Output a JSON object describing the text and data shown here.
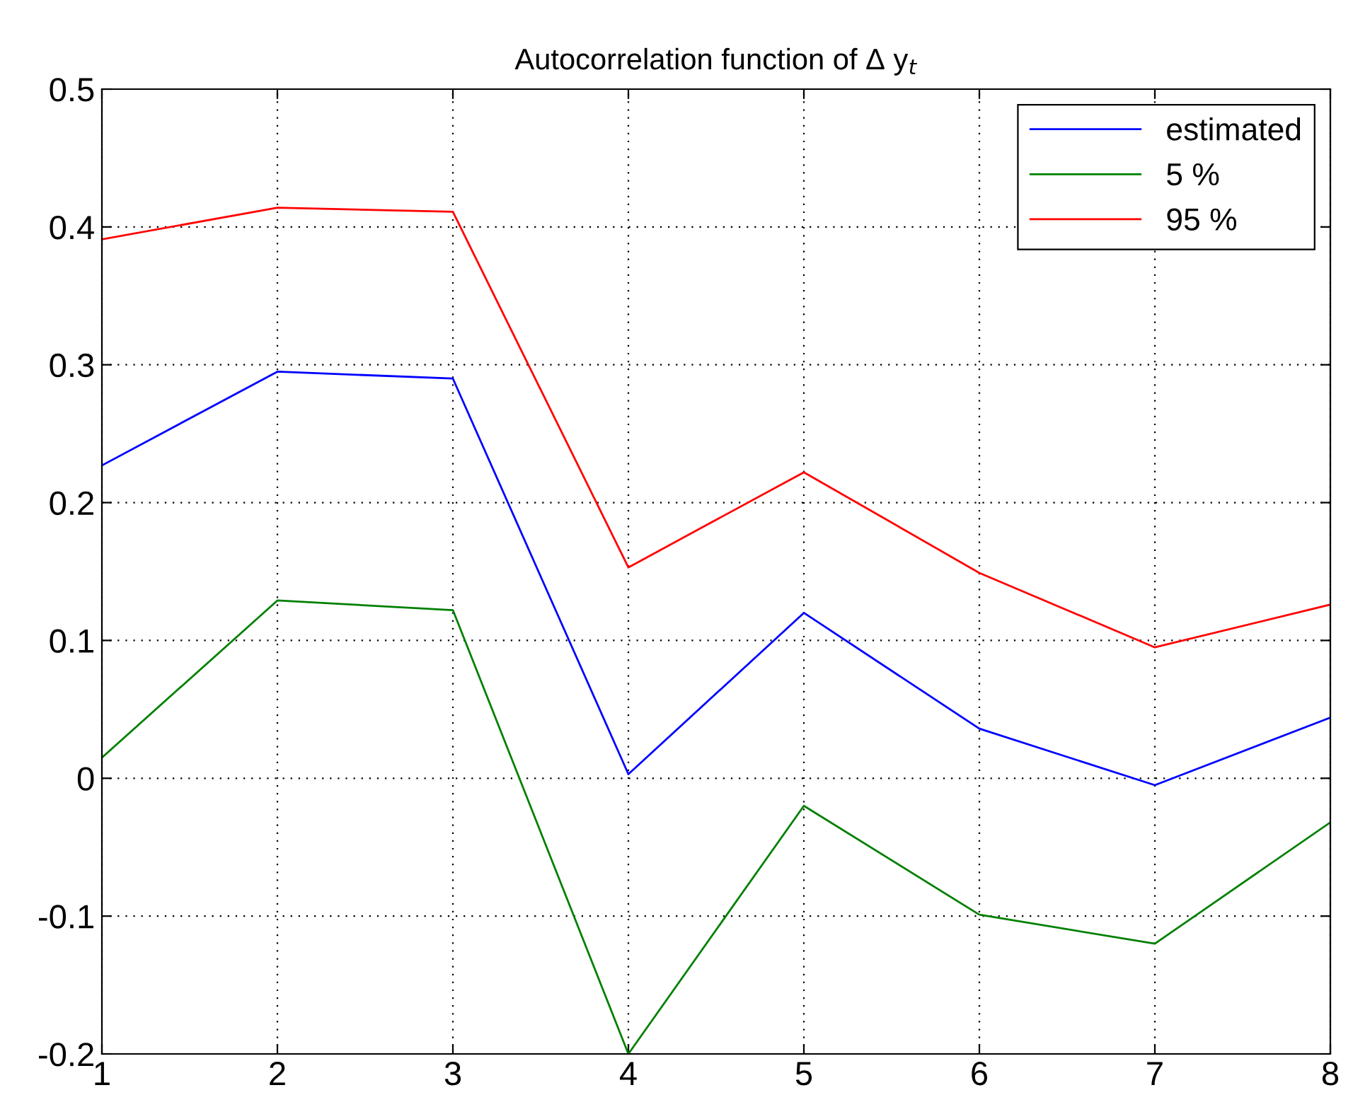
{
  "chart_data": {
    "type": "line",
    "title": "Autocorrelation function of Δ y$_{t}$",
    "x": [
      1,
      2,
      3,
      4,
      5,
      6,
      7,
      8
    ],
    "series": [
      {
        "name": "estimated",
        "color": "#0000ff",
        "values": [
          0.227,
          0.295,
          0.29,
          0.003,
          0.12,
          0.036,
          -0.005,
          0.044
        ]
      },
      {
        "name": "5 %",
        "color": "#008000",
        "values": [
          0.015,
          0.129,
          0.122,
          -0.2,
          -0.02,
          -0.099,
          -0.12,
          -0.032
        ]
      },
      {
        "name": "95 %",
        "color": "#ff0000",
        "values": [
          0.391,
          0.414,
          0.411,
          0.153,
          0.222,
          0.149,
          0.095,
          0.126
        ]
      }
    ],
    "xlim": [
      1,
      8
    ],
    "xticks": [
      1,
      2,
      3,
      4,
      5,
      6,
      7,
      8
    ],
    "ylim": [
      -0.2,
      0.5
    ],
    "yticks": [
      -0.2,
      -0.1,
      0,
      0.1,
      0.2,
      0.3,
      0.4,
      0.5
    ],
    "grid": true,
    "legend": "top right",
    "line_style": "solid",
    "marker": "none"
  }
}
